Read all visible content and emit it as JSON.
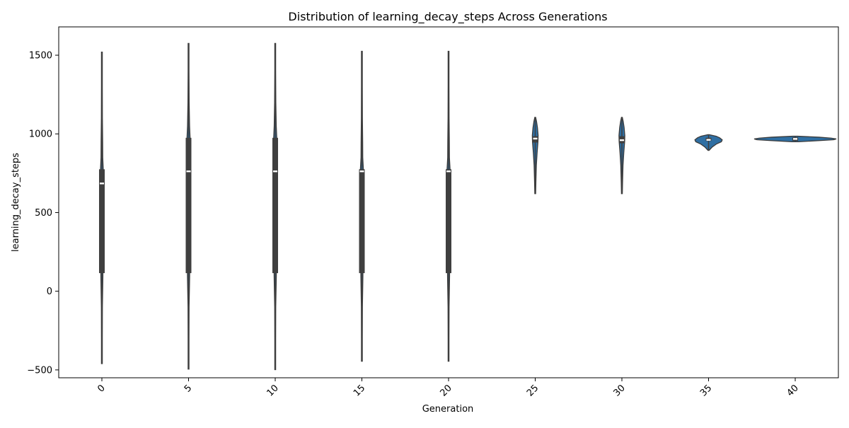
{
  "chart_data": {
    "type": "violin",
    "title": "Distribution of learning_decay_steps Across Generations",
    "xlabel": "Generation",
    "ylabel": "learning_decay_steps",
    "categories": [
      "0",
      "5",
      "10",
      "15",
      "20",
      "25",
      "30",
      "35",
      "40"
    ],
    "ylim": [
      -550,
      1680
    ],
    "yticks": [
      -500,
      0,
      500,
      1000,
      1500
    ],
    "xtick_rotation_deg": 45,
    "grid": false,
    "legend": "none",
    "series": [
      {
        "violins": [
          {
            "generation": "0",
            "min": -460,
            "q1": 115,
            "median": 685,
            "q3": 775,
            "max": 1520,
            "profile": [
              [
                -460,
                0.3
              ],
              [
                -300,
                0.4
              ],
              [
                -100,
                0.6
              ],
              [
                100,
                1.2
              ],
              [
                300,
                1.0
              ],
              [
                500,
                1.0
              ],
              [
                650,
                1.3
              ],
              [
                750,
                1.8
              ],
              [
                850,
                1.0
              ],
              [
                950,
                0.9
              ],
              [
                1100,
                0.6
              ],
              [
                1300,
                0.4
              ],
              [
                1520,
                0.3
              ]
            ]
          },
          {
            "generation": "5",
            "min": -495,
            "q1": 115,
            "median": 762,
            "q3": 975,
            "max": 1575,
            "profile": [
              [
                -495,
                0.3
              ],
              [
                -300,
                0.4
              ],
              [
                -100,
                0.6
              ],
              [
                100,
                1.3
              ],
              [
                300,
                1.1
              ],
              [
                500,
                1.0
              ],
              [
                700,
                1.3
              ],
              [
                800,
                1.6
              ],
              [
                950,
                2.0
              ],
              [
                1050,
                1.2
              ],
              [
                1200,
                0.7
              ],
              [
                1400,
                0.4
              ],
              [
                1575,
                0.3
              ]
            ]
          },
          {
            "generation": "10",
            "min": -498,
            "q1": 115,
            "median": 762,
            "q3": 975,
            "max": 1575,
            "profile": [
              [
                -498,
                0.3
              ],
              [
                -300,
                0.4
              ],
              [
                -100,
                0.6
              ],
              [
                100,
                1.3
              ],
              [
                300,
                1.1
              ],
              [
                500,
                1.0
              ],
              [
                700,
                1.3
              ],
              [
                800,
                1.6
              ],
              [
                950,
                2.0
              ],
              [
                1050,
                1.2
              ],
              [
                1200,
                0.7
              ],
              [
                1400,
                0.4
              ],
              [
                1575,
                0.3
              ]
            ]
          },
          {
            "generation": "15",
            "min": -445,
            "q1": 115,
            "median": 762,
            "q3": 775,
            "max": 1525,
            "profile": [
              [
                -445,
                0.3
              ],
              [
                -300,
                0.4
              ],
              [
                -100,
                0.6
              ],
              [
                100,
                1.2
              ],
              [
                300,
                1.0
              ],
              [
                500,
                1.0
              ],
              [
                650,
                1.3
              ],
              [
                760,
                1.9
              ],
              [
                850,
                1.0
              ],
              [
                950,
                0.9
              ],
              [
                1100,
                0.6
              ],
              [
                1300,
                0.4
              ],
              [
                1525,
                0.3
              ]
            ]
          },
          {
            "generation": "20",
            "min": -445,
            "q1": 115,
            "median": 762,
            "q3": 775,
            "max": 1525,
            "profile": [
              [
                -445,
                0.3
              ],
              [
                -300,
                0.4
              ],
              [
                -100,
                0.6
              ],
              [
                100,
                1.2
              ],
              [
                300,
                1.0
              ],
              [
                500,
                1.0
              ],
              [
                650,
                1.3
              ],
              [
                760,
                1.9
              ],
              [
                850,
                1.0
              ],
              [
                950,
                0.9
              ],
              [
                1100,
                0.6
              ],
              [
                1300,
                0.4
              ],
              [
                1525,
                0.3
              ]
            ]
          },
          {
            "generation": "25",
            "min": 620,
            "q1": 945,
            "median": 970,
            "q3": 985,
            "max": 1105,
            "profile": [
              [
                620,
                0.4
              ],
              [
                700,
                0.8
              ],
              [
                800,
                1.3
              ],
              [
                880,
                2.2
              ],
              [
                950,
                3.2
              ],
              [
                990,
                3.4
              ],
              [
                1040,
                2.6
              ],
              [
                1080,
                1.5
              ],
              [
                1105,
                0.4
              ]
            ]
          },
          {
            "generation": "30",
            "min": 620,
            "q1": 940,
            "median": 960,
            "q3": 985,
            "max": 1105,
            "profile": [
              [
                620,
                0.4
              ],
              [
                700,
                0.8
              ],
              [
                800,
                1.3
              ],
              [
                880,
                2.2
              ],
              [
                950,
                3.2
              ],
              [
                990,
                3.4
              ],
              [
                1040,
                2.6
              ],
              [
                1080,
                1.5
              ],
              [
                1105,
                0.4
              ]
            ]
          },
          {
            "generation": "35",
            "min": 895,
            "q1": 955,
            "median": 962,
            "q3": 975,
            "max": 995,
            "profile": [
              [
                895,
                0.6
              ],
              [
                915,
                4
              ],
              [
                935,
                9
              ],
              [
                950,
                15
              ],
              [
                962,
                16
              ],
              [
                975,
                13
              ],
              [
                985,
                9
              ],
              [
                995,
                0.8
              ]
            ]
          },
          {
            "generation": "40",
            "min": 950,
            "q1": 955,
            "median": 968,
            "q3": 978,
            "max": 985,
            "profile": [
              [
                950,
                4
              ],
              [
                958,
                30
              ],
              [
                963,
                45
              ],
              [
                968,
                48
              ],
              [
                973,
                42
              ],
              [
                979,
                28
              ],
              [
                985,
                3
              ]
            ]
          }
        ]
      }
    ],
    "colors": {
      "violin_fill": "#2f6fa3",
      "violin_edge": "#3a3a3a",
      "box": "#3f3f3f",
      "median": "#ffffff"
    }
  }
}
